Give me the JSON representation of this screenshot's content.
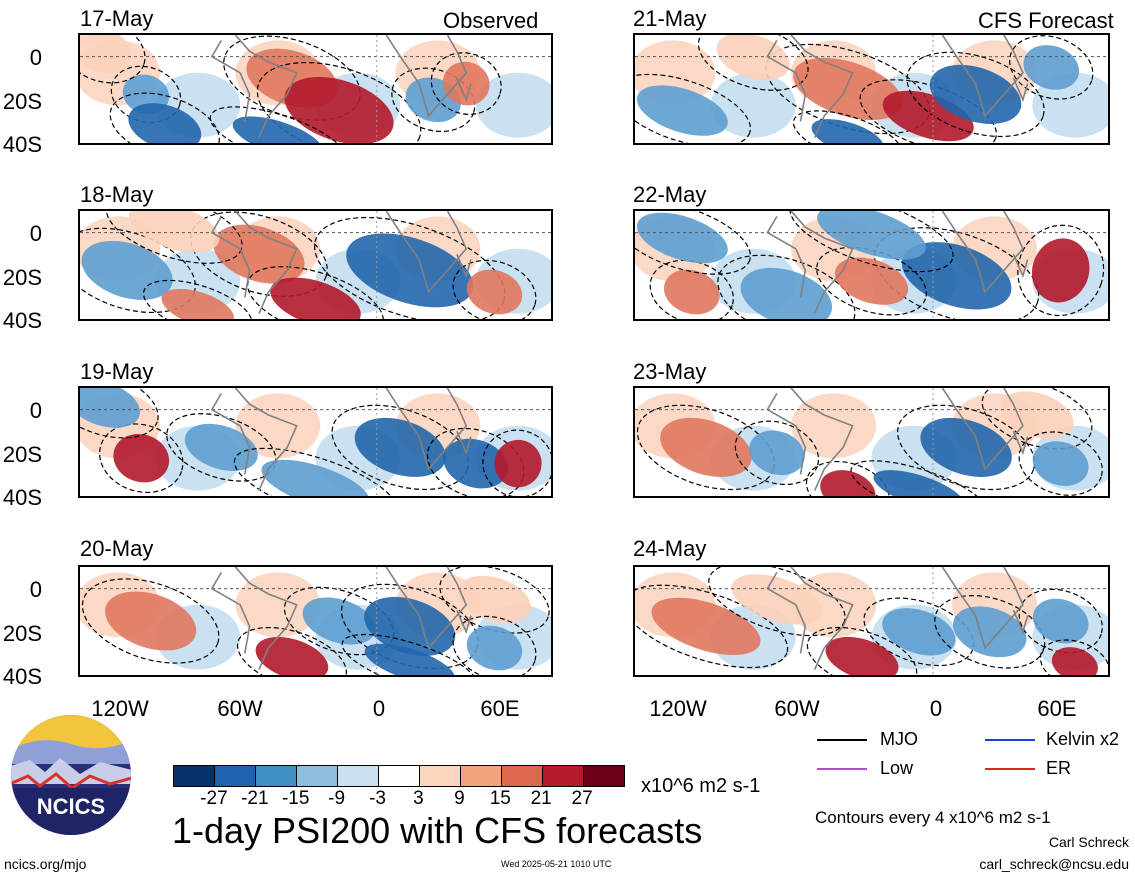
{
  "left_column": {
    "header": "Observed",
    "panels": [
      {
        "date": "17-May"
      },
      {
        "date": "18-May"
      },
      {
        "date": "19-May"
      },
      {
        "date": "20-May"
      }
    ]
  },
  "right_column": {
    "header": "CFS Forecast",
    "panels": [
      {
        "date": "21-May"
      },
      {
        "date": "22-May"
      },
      {
        "date": "23-May"
      },
      {
        "date": "24-May"
      }
    ]
  },
  "y_ticks": [
    "0",
    "20S",
    "40S"
  ],
  "x_ticks": [
    "120W",
    "60W",
    "0",
    "60E"
  ],
  "colorbar": {
    "colors": [
      "#08306b",
      "#1f63b0",
      "#3f8ec4",
      "#8dbfdd",
      "#cce2f1",
      "#ffffff",
      "#fcd5bf",
      "#f3a27f",
      "#dc6650",
      "#b5192b",
      "#6b0016"
    ],
    "ticks": [
      "-27",
      "-21",
      "-15",
      "-9",
      "-3",
      "3",
      "9",
      "15",
      "21",
      "27"
    ],
    "units": "x10^6 m2 s-1"
  },
  "legend": {
    "items": [
      {
        "label": "MJO",
        "color": "#000000"
      },
      {
        "label": "Kelvin x2",
        "color": "#1f3fd6"
      },
      {
        "label": "Low",
        "color": "#a44fd6"
      },
      {
        "label": "ER",
        "color": "#d62a1f"
      }
    ]
  },
  "contour_note": "Contours every 4 x10^6 m2 s-1",
  "main_title": "1-day PSI200 with CFS forecasts",
  "logo_text": "NCICS",
  "footer": {
    "left": "ncics.org/mjo",
    "center": "Wed 2025-05-21 1010 UTC",
    "author": "Carl Schreck",
    "email": "carl_schreck@ncsu.edu"
  },
  "palette": {
    "blue_dark": "#2166ac",
    "blue_mid": "#5d9fd0",
    "blue_light": "#bdd9ee",
    "red_dark": "#b2182b",
    "red_mid": "#e0775e",
    "red_light": "#fbd0b9",
    "land": "#808080"
  }
}
